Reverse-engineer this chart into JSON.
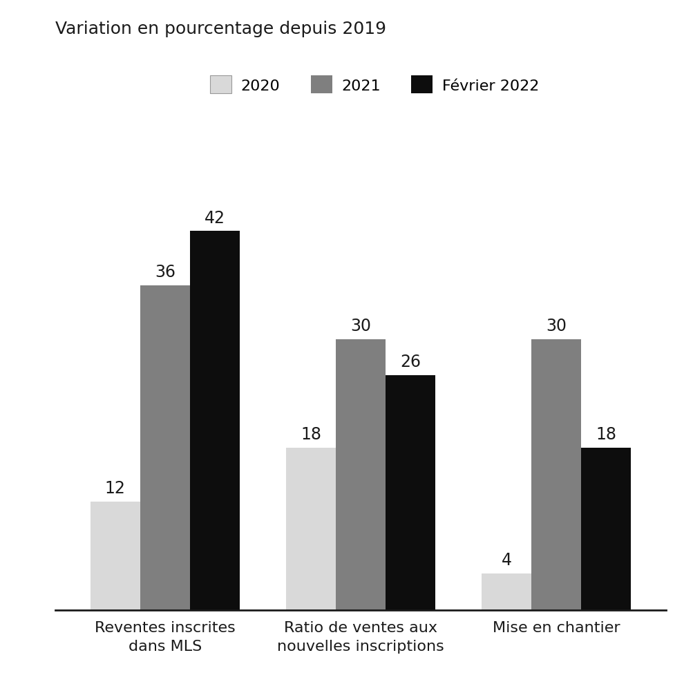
{
  "title": "Variation en pourcentage depuis 2019",
  "categories": [
    "Reventes inscrites\ndans MLS",
    "Ratio de ventes aux\nnouvelles inscriptions",
    "Mise en chantier"
  ],
  "series": {
    "2020": [
      12,
      18,
      4
    ],
    "2021": [
      36,
      30,
      30
    ],
    "Février 2022": [
      42,
      26,
      18
    ]
  },
  "colors": {
    "2020": "#d9d9d9",
    "2021": "#7f7f7f",
    "Février 2022": "#0d0d0d"
  },
  "legend_labels": [
    "2020",
    "2021",
    "Février 2022"
  ],
  "ylim": [
    0,
    50
  ],
  "bar_width": 0.28,
  "group_centers": [
    0.35,
    1.45,
    2.55
  ],
  "title_fontsize": 18,
  "tick_fontsize": 16,
  "legend_fontsize": 16,
  "value_fontsize": 17,
  "background_color": "#ffffff"
}
